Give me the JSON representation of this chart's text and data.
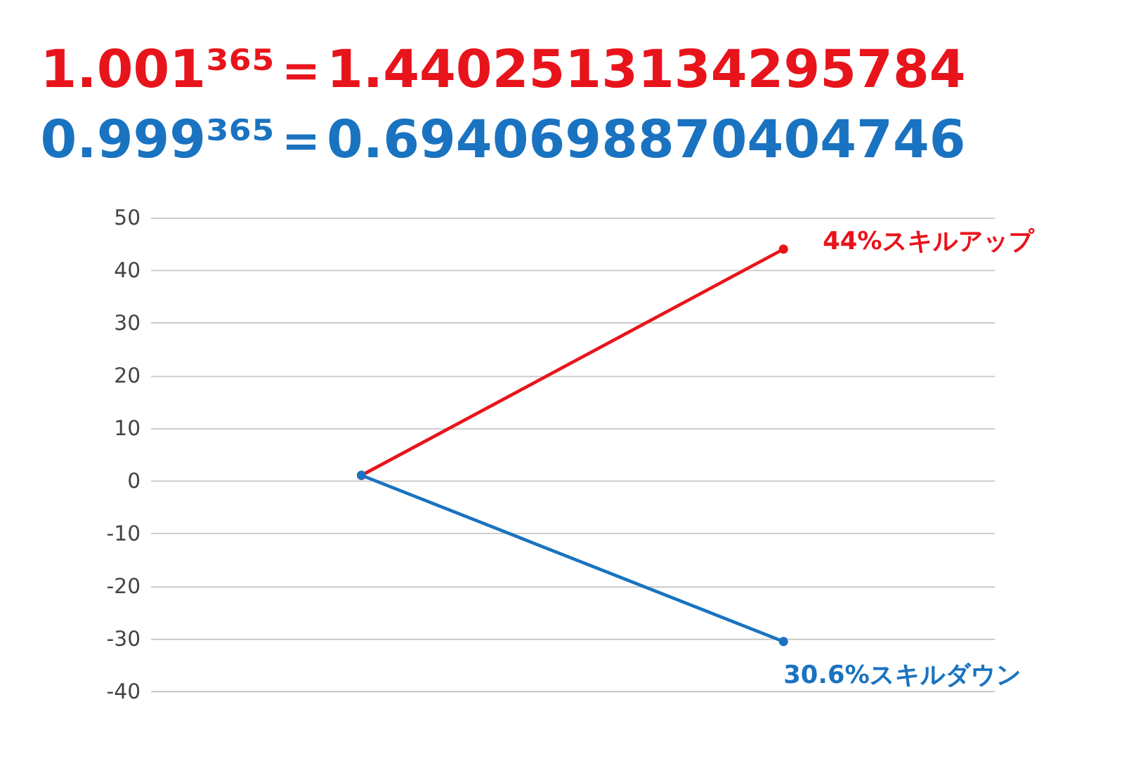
{
  "chart_data": {
    "type": "line",
    "title": "1.001³⁶⁵＝1.4402513134295784",
    "subtitle": "0.999³⁶⁵＝0.6940698870404746",
    "categories": [
      null,
      null
    ],
    "series": [
      {
        "color": "#e8141b",
        "values": [
          1,
          44
        ]
      },
      {
        "color": "#1a73c0",
        "values": [
          1,
          -30.6
        ]
      }
    ],
    "annotations": [
      "44%スキルアップ",
      "30.6%スキルダウン"
    ],
    "ylim": [
      -40,
      50
    ],
    "yticks": [
      -40,
      -30,
      -20,
      -10,
      0,
      10,
      20,
      30,
      40,
      50
    ],
    "grid": "y",
    "tick_labels": "y",
    "legend": false,
    "marker": "circle",
    "line_style": "solid"
  }
}
